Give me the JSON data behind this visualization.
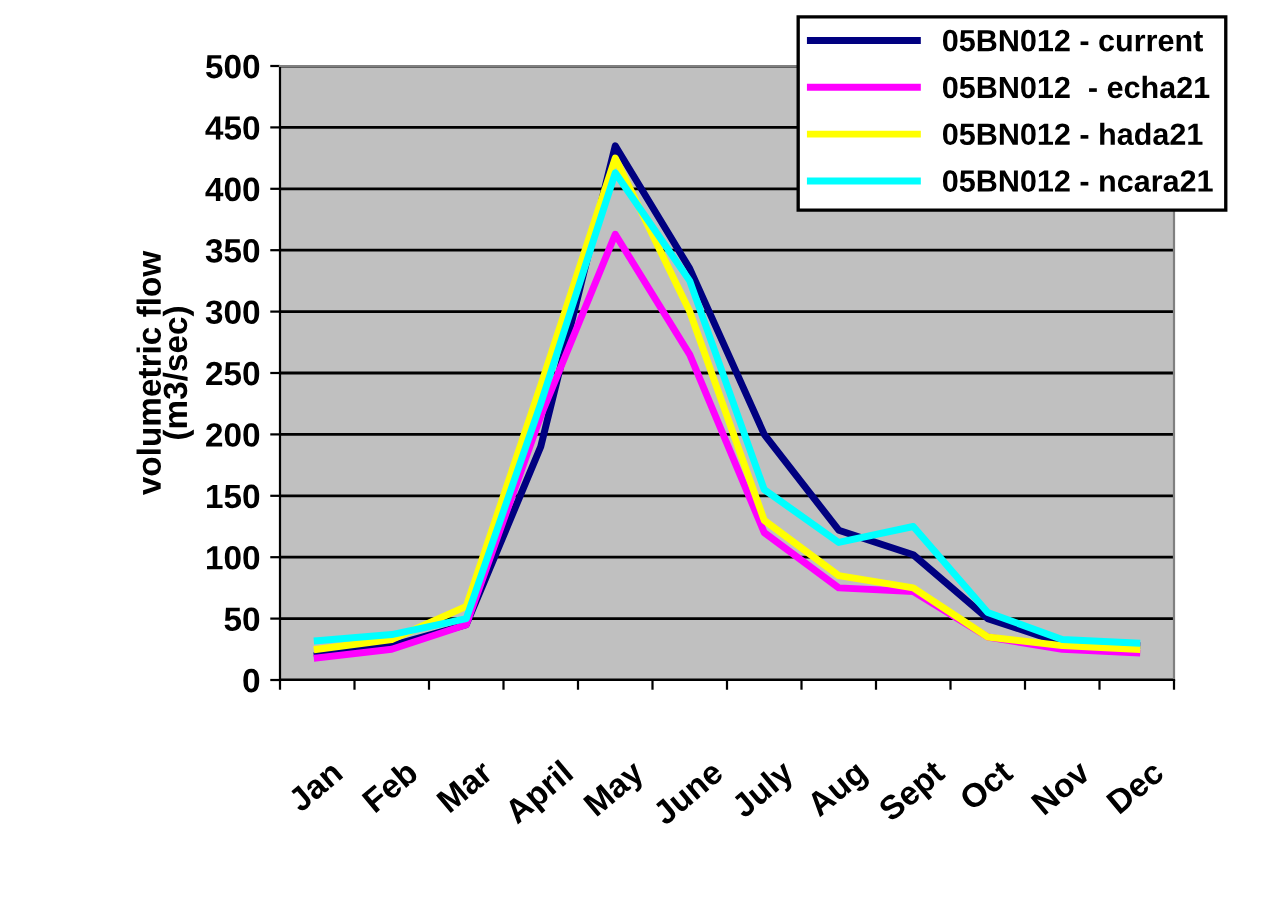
{
  "chart_data": {
    "type": "line",
    "ylabel": "volumetric flow\n(m3/sec)",
    "categories": [
      "Jan",
      "Feb",
      "Mar",
      "April",
      "May",
      "June",
      "July",
      "Aug",
      "Sept",
      "Oct",
      "Nov",
      "Dec"
    ],
    "series": [
      {
        "name": "05BN012 - current",
        "color": "#000080",
        "values": [
          20,
          28,
          45,
          190,
          435,
          335,
          200,
          122,
          102,
          50,
          30,
          28
        ]
      },
      {
        "name": "05BN012  - echa21",
        "color": "#ff00ff",
        "values": [
          18,
          25,
          45,
          215,
          363,
          265,
          120,
          75,
          72,
          35,
          25,
          22
        ]
      },
      {
        "name": "05BN012 - hada21",
        "color": "#ffff00",
        "values": [
          25,
          33,
          60,
          240,
          425,
          300,
          130,
          85,
          75,
          35,
          28,
          25
        ]
      },
      {
        "name": "05BN012 - ncara21",
        "color": "#00ffff",
        "values": [
          32,
          37,
          50,
          225,
          413,
          325,
          155,
          112,
          125,
          55,
          33,
          30
        ]
      }
    ],
    "ylim": [
      0,
      500
    ],
    "yticks": [
      0,
      50,
      100,
      150,
      200,
      250,
      300,
      350,
      400,
      450,
      500
    ],
    "grid": "y",
    "legend": "top right",
    "marker": "none",
    "line_style": "solid"
  }
}
